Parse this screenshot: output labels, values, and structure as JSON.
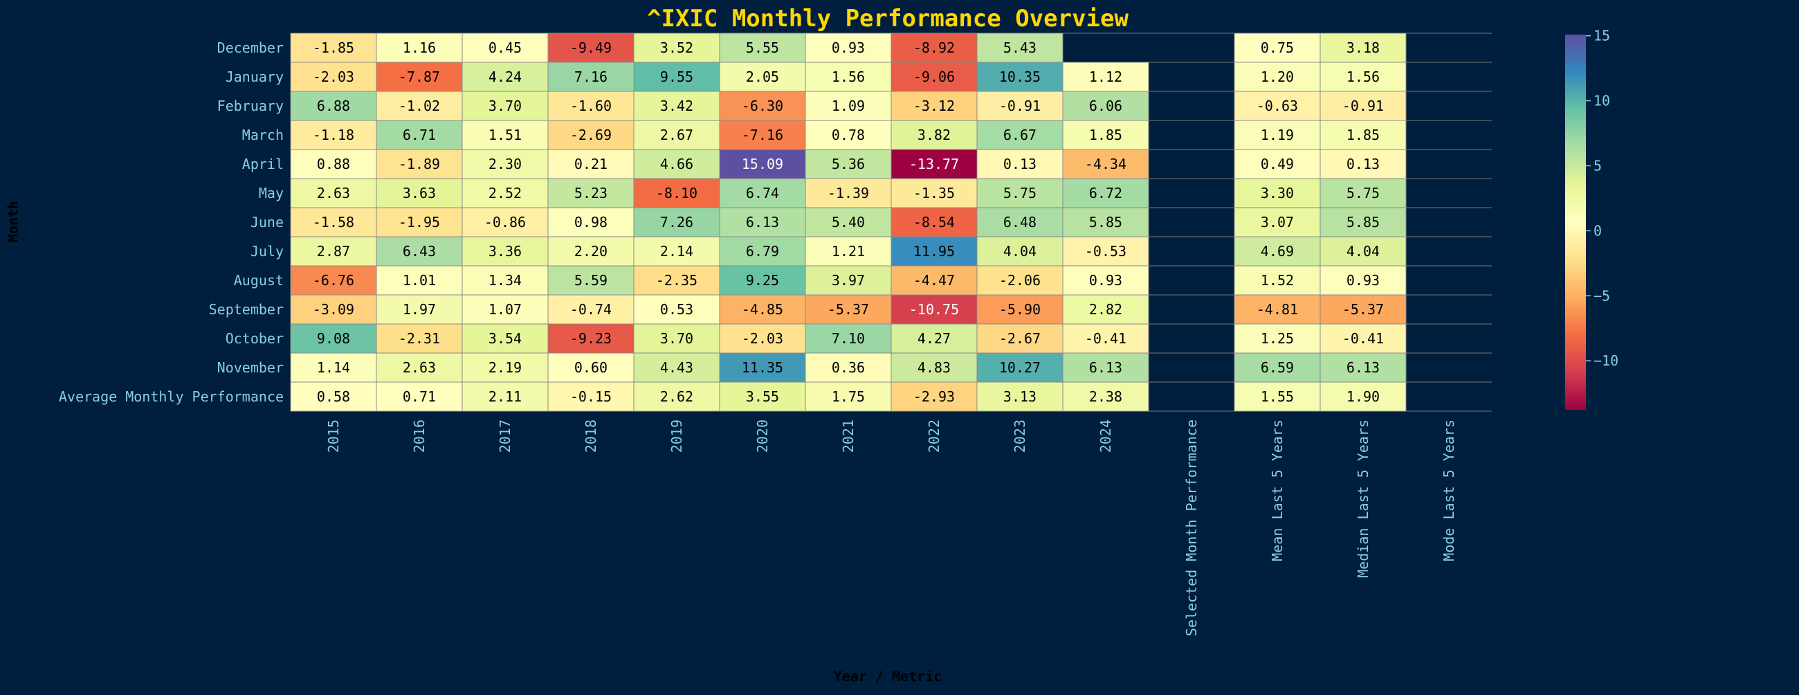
{
  "chart_data": {
    "type": "heatmap",
    "title": "^IXIC Monthly Performance Overview",
    "xlabel": "Year / Metric",
    "ylabel": "Month",
    "columns": [
      "2015",
      "2016",
      "2017",
      "2018",
      "2019",
      "2020",
      "2021",
      "2022",
      "2023",
      "2024",
      "Selected Month Performance",
      "Mean Last 5 Years",
      "Median Last 5 Years",
      "Mode Last 5 Years"
    ],
    "rows": [
      "December",
      "January",
      "February",
      "March",
      "April",
      "May",
      "June",
      "July",
      "August",
      "September",
      "October",
      "November",
      "Average Monthly Performance"
    ],
    "values": [
      [
        -1.85,
        1.16,
        0.45,
        -9.49,
        3.52,
        5.55,
        0.93,
        -8.92,
        5.43,
        null,
        null,
        0.75,
        3.18,
        null
      ],
      [
        -2.03,
        -7.87,
        4.24,
        7.16,
        9.55,
        2.05,
        1.56,
        -9.06,
        10.35,
        1.12,
        null,
        1.2,
        1.56,
        null
      ],
      [
        6.88,
        -1.02,
        3.7,
        -1.6,
        3.42,
        -6.3,
        1.09,
        -3.12,
        -0.91,
        6.06,
        null,
        -0.63,
        -0.91,
        null
      ],
      [
        -1.18,
        6.71,
        1.51,
        -2.69,
        2.67,
        -7.16,
        0.78,
        3.82,
        6.67,
        1.85,
        null,
        1.19,
        1.85,
        null
      ],
      [
        0.88,
        -1.89,
        2.3,
        0.21,
        4.66,
        15.09,
        5.36,
        -13.77,
        0.13,
        -4.34,
        null,
        0.49,
        0.13,
        null
      ],
      [
        2.63,
        3.63,
        2.52,
        5.23,
        -8.1,
        6.74,
        -1.39,
        -1.35,
        5.75,
        6.72,
        null,
        3.3,
        5.75,
        null
      ],
      [
        -1.58,
        -1.95,
        -0.86,
        0.98,
        7.26,
        6.13,
        5.4,
        -8.54,
        6.48,
        5.85,
        null,
        3.07,
        5.85,
        null
      ],
      [
        2.87,
        6.43,
        3.36,
        2.2,
        2.14,
        6.79,
        1.21,
        11.95,
        4.04,
        -0.53,
        null,
        4.69,
        4.04,
        null
      ],
      [
        -6.76,
        1.01,
        1.34,
        5.59,
        -2.35,
        9.25,
        3.97,
        -4.47,
        -2.06,
        0.93,
        null,
        1.52,
        0.93,
        null
      ],
      [
        -3.09,
        1.97,
        1.07,
        -0.74,
        0.53,
        -4.85,
        -5.37,
        -10.75,
        -5.9,
        2.82,
        null,
        -4.81,
        -5.37,
        null
      ],
      [
        9.08,
        -2.31,
        3.54,
        -9.23,
        3.7,
        -2.03,
        7.1,
        4.27,
        -2.67,
        -0.41,
        null,
        1.25,
        -0.41,
        null
      ],
      [
        1.14,
        2.63,
        2.19,
        0.6,
        4.43,
        11.35,
        0.36,
        4.83,
        10.27,
        6.13,
        null,
        6.59,
        6.13,
        null
      ],
      [
        0.58,
        0.71,
        2.11,
        -0.15,
        2.62,
        3.55,
        1.75,
        -2.93,
        3.13,
        2.38,
        null,
        1.55,
        1.9,
        null
      ]
    ],
    "colormap": "Spectral",
    "vmin": -13.77,
    "vmax": 15.09,
    "colorbar_ticks": [
      15,
      10,
      5,
      0,
      -5,
      -10
    ],
    "colorbar_tick_labels": [
      "15",
      "10",
      "5",
      "0",
      "−5",
      "−10"
    ],
    "value_format": "2 decimals",
    "colors": {
      "background": "#001f3f",
      "title": "#ffd700",
      "tick_labels": "#87ceeb",
      "axis_labels": "#000000",
      "grid": "#808080"
    }
  }
}
